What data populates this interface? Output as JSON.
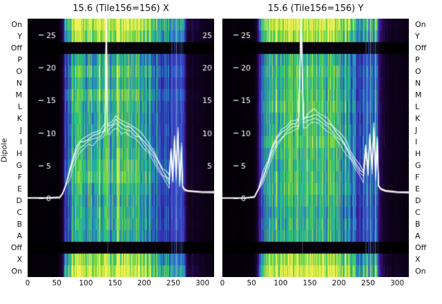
{
  "ylabel": "Dipole",
  "row_labels": [
    "On",
    "Y",
    "Off",
    "P",
    "O",
    "N",
    "M",
    "L",
    "K",
    "J",
    "I",
    "H",
    "G",
    "F",
    "E",
    "D",
    "C",
    "B",
    "A",
    "Off",
    "X",
    "On"
  ],
  "row_kinds": [
    "on",
    "xy",
    "off",
    "dipole",
    "dipole",
    "dipole",
    "dipole",
    "dipole",
    "dipole",
    "dipole",
    "dipole",
    "dipole",
    "dipole",
    "dipole",
    "dipole",
    "dipole",
    "dipole",
    "dipole",
    "dipole",
    "off",
    "xy",
    "on"
  ],
  "colors": {
    "background": "#000000",
    "trace": "#ffffff",
    "tick_text": "#ffffff",
    "title_text": "#111111"
  },
  "colormap": [
    [
      0.0,
      "#000000"
    ],
    [
      0.13,
      "#16042c"
    ],
    [
      0.28,
      "#3a1180"
    ],
    [
      0.4,
      "#3138b8"
    ],
    [
      0.5,
      "#2a72c8"
    ],
    [
      0.6,
      "#22aeae"
    ],
    [
      0.7,
      "#2fca62"
    ],
    [
      0.84,
      "#9bdc30"
    ],
    [
      1.0,
      "#f2f258"
    ]
  ],
  "chart_data": [
    {
      "type": "heatmap",
      "title": "15.6 (Tile156=156) X",
      "xlim": [
        0,
        320
      ],
      "ylim": [
        -12,
        27.5
      ],
      "x_ticks": [
        0,
        50,
        100,
        150,
        200,
        250,
        300
      ],
      "y_ticks": [
        25,
        20,
        15,
        10,
        5,
        0
      ],
      "right_y_ticks": [
        25,
        20,
        15,
        10,
        5
      ],
      "seed": 13,
      "profile": [
        [
          0,
          0.02
        ],
        [
          52,
          0.025
        ],
        [
          58,
          0.1
        ],
        [
          63,
          0.3
        ],
        [
          68,
          0.5
        ],
        [
          75,
          0.55
        ],
        [
          85,
          0.62
        ],
        [
          95,
          0.66
        ],
        [
          105,
          0.6
        ],
        [
          115,
          0.63
        ],
        [
          125,
          0.66
        ],
        [
          135,
          0.62
        ],
        [
          145,
          0.66
        ],
        [
          155,
          0.68
        ],
        [
          165,
          0.66
        ],
        [
          175,
          0.63
        ],
        [
          185,
          0.62
        ],
        [
          195,
          0.6
        ],
        [
          205,
          0.55
        ],
        [
          215,
          0.5
        ],
        [
          225,
          0.45
        ],
        [
          235,
          0.4
        ],
        [
          243,
          0.38
        ],
        [
          248,
          0.42
        ],
        [
          253,
          0.48
        ],
        [
          258,
          0.44
        ],
        [
          263,
          0.5
        ],
        [
          267,
          0.3
        ],
        [
          272,
          0.16
        ],
        [
          280,
          0.1
        ],
        [
          292,
          0.08
        ],
        [
          305,
          0.06
        ],
        [
          320,
          0.05
        ]
      ],
      "vlines": [
        {
          "x": 137,
          "color": "#d0ffe0",
          "alpha": 0.3,
          "w": 1
        },
        {
          "x": 247,
          "color": "#9fb6ff",
          "alpha": 0.5,
          "w": 1
        },
        {
          "x": 251,
          "color": "#3b55e6",
          "alpha": 0.55,
          "w": 2
        },
        {
          "x": 255,
          "color": "#b8ccff",
          "alpha": 0.65,
          "w": 1
        },
        {
          "x": 259,
          "color": "#2740cc",
          "alpha": 0.5,
          "w": 2
        },
        {
          "x": 263,
          "color": "#8fa8ff",
          "alpha": 0.55,
          "w": 1
        },
        {
          "x": 266,
          "color": "#4a66ff",
          "alpha": 0.45,
          "w": 1
        }
      ],
      "trace": [
        [
          0,
          0.1
        ],
        [
          40,
          0.1
        ],
        [
          55,
          0.2
        ],
        [
          60,
          0.8
        ],
        [
          66,
          2.2
        ],
        [
          72,
          4.2
        ],
        [
          78,
          6
        ],
        [
          84,
          7.4
        ],
        [
          90,
          8.4
        ],
        [
          96,
          8.9
        ],
        [
          104,
          9.2
        ],
        [
          112,
          9.5
        ],
        [
          120,
          9.9
        ],
        [
          126,
          10.2
        ],
        [
          130,
          10.5
        ],
        [
          133,
          10.9
        ],
        [
          135,
          28
        ],
        [
          137,
          10.9
        ],
        [
          141,
          11.1
        ],
        [
          146,
          11.5
        ],
        [
          151,
          12.1
        ],
        [
          156,
          11.7
        ],
        [
          161,
          11.3
        ],
        [
          168,
          11.1
        ],
        [
          176,
          10.7
        ],
        [
          184,
          10.3
        ],
        [
          192,
          9.7
        ],
        [
          200,
          8.9
        ],
        [
          208,
          7.9
        ],
        [
          216,
          6.7
        ],
        [
          224,
          5.5
        ],
        [
          232,
          4.3
        ],
        [
          238,
          3.5
        ],
        [
          243,
          2.9
        ],
        [
          246,
          7.4
        ],
        [
          249,
          3.4
        ],
        [
          252,
          8.9
        ],
        [
          255,
          3.9
        ],
        [
          258,
          10.4
        ],
        [
          261,
          2.9
        ],
        [
          264,
          7.9
        ],
        [
          266,
          1.9
        ],
        [
          269,
          1.4
        ],
        [
          275,
          1.2
        ],
        [
          285,
          1.1
        ],
        [
          300,
          1.0
        ],
        [
          320,
          1.0
        ]
      ]
    },
    {
      "type": "heatmap",
      "title": "15.6 (Tile156=156) Y",
      "xlim": [
        0,
        320
      ],
      "ylim": [
        -12,
        27.5
      ],
      "x_ticks": [
        0,
        50,
        100,
        150,
        200,
        250,
        300
      ],
      "y_ticks": [
        25,
        20,
        15,
        10,
        5,
        0
      ],
      "right_y_ticks": [],
      "seed": 29,
      "profile": [
        [
          0,
          0.02
        ],
        [
          52,
          0.025
        ],
        [
          58,
          0.1
        ],
        [
          63,
          0.32
        ],
        [
          70,
          0.52
        ],
        [
          80,
          0.58
        ],
        [
          90,
          0.64
        ],
        [
          100,
          0.66
        ],
        [
          110,
          0.62
        ],
        [
          120,
          0.65
        ],
        [
          130,
          0.64
        ],
        [
          140,
          0.66
        ],
        [
          150,
          0.7
        ],
        [
          160,
          0.68
        ],
        [
          170,
          0.66
        ],
        [
          180,
          0.64
        ],
        [
          190,
          0.62
        ],
        [
          200,
          0.58
        ],
        [
          210,
          0.54
        ],
        [
          220,
          0.48
        ],
        [
          230,
          0.43
        ],
        [
          240,
          0.39
        ],
        [
          248,
          0.43
        ],
        [
          253,
          0.5
        ],
        [
          258,
          0.45
        ],
        [
          263,
          0.52
        ],
        [
          267,
          0.3
        ],
        [
          272,
          0.16
        ],
        [
          280,
          0.1
        ],
        [
          292,
          0.08
        ],
        [
          305,
          0.06
        ],
        [
          320,
          0.05
        ]
      ],
      "vlines": [
        {
          "x": 137,
          "color": "#d0ffe0",
          "alpha": 0.3,
          "w": 1
        },
        {
          "x": 246,
          "color": "#9fb6ff",
          "alpha": 0.5,
          "w": 1
        },
        {
          "x": 250,
          "color": "#3b55e6",
          "alpha": 0.55,
          "w": 2
        },
        {
          "x": 254,
          "color": "#b8ccff",
          "alpha": 0.65,
          "w": 1
        },
        {
          "x": 258,
          "color": "#2740cc",
          "alpha": 0.5,
          "w": 2
        },
        {
          "x": 262,
          "color": "#8fa8ff",
          "alpha": 0.55,
          "w": 1
        },
        {
          "x": 266,
          "color": "#4a66ff",
          "alpha": 0.45,
          "w": 1
        }
      ],
      "trace": [
        [
          0,
          0.1
        ],
        [
          40,
          0.1
        ],
        [
          55,
          0.3
        ],
        [
          62,
          1.5
        ],
        [
          70,
          3.5
        ],
        [
          78,
          5.5
        ],
        [
          86,
          7.5
        ],
        [
          94,
          9
        ],
        [
          102,
          10
        ],
        [
          110,
          10.8
        ],
        [
          118,
          11.2
        ],
        [
          126,
          11.6
        ],
        [
          131,
          11.8
        ],
        [
          135,
          28
        ],
        [
          139,
          11.8
        ],
        [
          145,
          12.2
        ],
        [
          152,
          12.8
        ],
        [
          158,
          13
        ],
        [
          164,
          12.6
        ],
        [
          172,
          12.2
        ],
        [
          180,
          11.6
        ],
        [
          188,
          11
        ],
        [
          196,
          10.2
        ],
        [
          204,
          9.2
        ],
        [
          212,
          8.2
        ],
        [
          220,
          7
        ],
        [
          228,
          5.8
        ],
        [
          236,
          4.6
        ],
        [
          242,
          3.8
        ],
        [
          246,
          8
        ],
        [
          250,
          4.5
        ],
        [
          253,
          9.5
        ],
        [
          257,
          5
        ],
        [
          260,
          11
        ],
        [
          263,
          4
        ],
        [
          266,
          9
        ],
        [
          268,
          2
        ],
        [
          272,
          1.5
        ],
        [
          280,
          1.2
        ],
        [
          300,
          1.0
        ],
        [
          320,
          1.0
        ]
      ]
    }
  ]
}
